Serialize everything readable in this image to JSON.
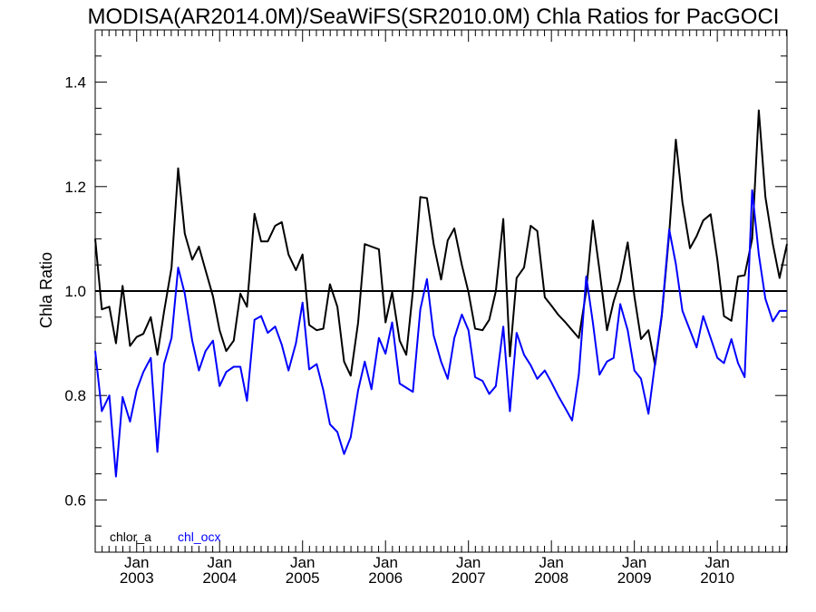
{
  "chart_data": {
    "type": "line",
    "title": "MODISA(AR2014.0M)/SeaWiFS(SR2010.0M)  Chla Ratios for PacGOCI",
    "ylabel": "Chla Ratio",
    "xlabel": "",
    "ylim": [
      0.5,
      1.5
    ],
    "yticks": [
      0.6,
      0.8,
      1.0,
      1.2,
      1.4
    ],
    "ytick_labels": [
      "0.6",
      "0.8",
      "1.0",
      "1.2",
      "1.4"
    ],
    "xlim": [
      2002.5,
      2010.84
    ],
    "xticks": [
      {
        "x": 2003.0,
        "line1": "Jan",
        "line2": "2003"
      },
      {
        "x": 2004.0,
        "line1": "Jan",
        "line2": "2004"
      },
      {
        "x": 2005.0,
        "line1": "Jan",
        "line2": "2005"
      },
      {
        "x": 2006.0,
        "line1": "Jan",
        "line2": "2006"
      },
      {
        "x": 2007.0,
        "line1": "Jan",
        "line2": "2007"
      },
      {
        "x": 2008.0,
        "line1": "Jan",
        "line2": "2008"
      },
      {
        "x": 2009.0,
        "line1": "Jan",
        "line2": "2009"
      },
      {
        "x": 2010.0,
        "line1": "Jan",
        "line2": "2010"
      }
    ],
    "reference_line": 1.0,
    "legend_position": "bottom-left",
    "series": [
      {
        "name": "chlor_a",
        "color": "#000000",
        "points": [
          [
            2002.5,
            1.1
          ],
          [
            2002.58,
            0.965
          ],
          [
            2002.67,
            0.97
          ],
          [
            2002.75,
            0.9
          ],
          [
            2002.83,
            1.01
          ],
          [
            2002.92,
            0.895
          ],
          [
            2003.0,
            0.912
          ],
          [
            2003.08,
            0.918
          ],
          [
            2003.17,
            0.95
          ],
          [
            2003.25,
            0.878
          ],
          [
            2003.33,
            0.96
          ],
          [
            2003.42,
            1.045
          ],
          [
            2003.5,
            1.235
          ],
          [
            2003.58,
            1.11
          ],
          [
            2003.67,
            1.06
          ],
          [
            2003.75,
            1.085
          ],
          [
            2003.83,
            1.04
          ],
          [
            2003.92,
            0.99
          ],
          [
            2004.0,
            0.925
          ],
          [
            2004.08,
            0.885
          ],
          [
            2004.17,
            0.905
          ],
          [
            2004.25,
            0.995
          ],
          [
            2004.33,
            0.97
          ],
          [
            2004.42,
            1.148
          ],
          [
            2004.5,
            1.095
          ],
          [
            2004.58,
            1.095
          ],
          [
            2004.67,
            1.125
          ],
          [
            2004.75,
            1.132
          ],
          [
            2004.83,
            1.07
          ],
          [
            2004.92,
            1.04
          ],
          [
            2005.0,
            1.07
          ],
          [
            2005.08,
            0.935
          ],
          [
            2005.17,
            0.925
          ],
          [
            2005.25,
            0.928
          ],
          [
            2005.33,
            1.013
          ],
          [
            2005.42,
            0.97
          ],
          [
            2005.5,
            0.865
          ],
          [
            2005.58,
            0.838
          ],
          [
            2005.67,
            0.94
          ],
          [
            2005.75,
            1.09
          ],
          [
            2005.83,
            1.085
          ],
          [
            2005.92,
            1.08
          ],
          [
            2006.0,
            0.94
          ],
          [
            2006.08,
            0.998
          ],
          [
            2006.17,
            0.905
          ],
          [
            2006.25,
            0.878
          ],
          [
            2006.33,
            1.0
          ],
          [
            2006.42,
            1.18
          ],
          [
            2006.5,
            1.178
          ],
          [
            2006.58,
            1.09
          ],
          [
            2006.67,
            1.022
          ],
          [
            2006.75,
            1.097
          ],
          [
            2006.83,
            1.12
          ],
          [
            2006.92,
            1.05
          ],
          [
            2007.0,
            0.998
          ],
          [
            2007.08,
            0.928
          ],
          [
            2007.17,
            0.925
          ],
          [
            2007.25,
            0.945
          ],
          [
            2007.33,
            1.0
          ],
          [
            2007.42,
            1.138
          ],
          [
            2007.5,
            0.875
          ],
          [
            2007.58,
            1.025
          ],
          [
            2007.67,
            1.045
          ],
          [
            2007.75,
            1.125
          ],
          [
            2007.83,
            1.115
          ],
          [
            2007.92,
            0.988
          ],
          [
            2008.0,
            0.972
          ],
          [
            2008.08,
            0.955
          ],
          [
            2008.17,
            0.94
          ],
          [
            2008.25,
            0.925
          ],
          [
            2008.33,
            0.91
          ],
          [
            2008.42,
            1.0
          ],
          [
            2008.5,
            1.135
          ],
          [
            2008.58,
            1.04
          ],
          [
            2008.67,
            0.925
          ],
          [
            2008.75,
            0.98
          ],
          [
            2008.83,
            1.02
          ],
          [
            2008.92,
            1.093
          ],
          [
            2009.0,
            0.99
          ],
          [
            2009.08,
            0.908
          ],
          [
            2009.17,
            0.925
          ],
          [
            2009.25,
            0.858
          ],
          [
            2009.33,
            0.952
          ],
          [
            2009.42,
            1.11
          ],
          [
            2009.5,
            1.29
          ],
          [
            2009.58,
            1.17
          ],
          [
            2009.67,
            1.082
          ],
          [
            2009.75,
            1.105
          ],
          [
            2009.83,
            1.135
          ],
          [
            2009.92,
            1.147
          ],
          [
            2010.0,
            1.06
          ],
          [
            2010.08,
            0.952
          ],
          [
            2010.17,
            0.943
          ],
          [
            2010.25,
            1.028
          ],
          [
            2010.33,
            1.03
          ],
          [
            2010.42,
            1.1
          ],
          [
            2010.5,
            1.346
          ],
          [
            2010.58,
            1.18
          ],
          [
            2010.67,
            1.09
          ],
          [
            2010.75,
            1.025
          ],
          [
            2010.84,
            1.09
          ]
        ]
      },
      {
        "name": "chl_ocx",
        "color": "#0000ff",
        "points": [
          [
            2002.5,
            0.885
          ],
          [
            2002.58,
            0.77
          ],
          [
            2002.67,
            0.8
          ],
          [
            2002.75,
            0.645
          ],
          [
            2002.83,
            0.797
          ],
          [
            2002.92,
            0.75
          ],
          [
            2003.0,
            0.81
          ],
          [
            2003.08,
            0.845
          ],
          [
            2003.17,
            0.872
          ],
          [
            2003.25,
            0.692
          ],
          [
            2003.33,
            0.86
          ],
          [
            2003.42,
            0.91
          ],
          [
            2003.5,
            1.045
          ],
          [
            2003.58,
            0.995
          ],
          [
            2003.67,
            0.905
          ],
          [
            2003.75,
            0.848
          ],
          [
            2003.83,
            0.885
          ],
          [
            2003.92,
            0.905
          ],
          [
            2004.0,
            0.818
          ],
          [
            2004.08,
            0.845
          ],
          [
            2004.17,
            0.855
          ],
          [
            2004.25,
            0.855
          ],
          [
            2004.33,
            0.79
          ],
          [
            2004.42,
            0.945
          ],
          [
            2004.5,
            0.952
          ],
          [
            2004.58,
            0.92
          ],
          [
            2004.67,
            0.932
          ],
          [
            2004.75,
            0.897
          ],
          [
            2004.83,
            0.848
          ],
          [
            2004.92,
            0.9
          ],
          [
            2005.0,
            0.978
          ],
          [
            2005.08,
            0.85
          ],
          [
            2005.17,
            0.86
          ],
          [
            2005.25,
            0.81
          ],
          [
            2005.33,
            0.745
          ],
          [
            2005.42,
            0.73
          ],
          [
            2005.5,
            0.688
          ],
          [
            2005.58,
            0.72
          ],
          [
            2005.67,
            0.81
          ],
          [
            2005.75,
            0.865
          ],
          [
            2005.83,
            0.812
          ],
          [
            2005.92,
            0.91
          ],
          [
            2006.0,
            0.88
          ],
          [
            2006.08,
            0.94
          ],
          [
            2006.17,
            0.823
          ],
          [
            2006.25,
            0.815
          ],
          [
            2006.33,
            0.807
          ],
          [
            2006.42,
            0.965
          ],
          [
            2006.5,
            1.023
          ],
          [
            2006.58,
            0.915
          ],
          [
            2006.67,
            0.865
          ],
          [
            2006.75,
            0.832
          ],
          [
            2006.83,
            0.91
          ],
          [
            2006.92,
            0.955
          ],
          [
            2007.0,
            0.925
          ],
          [
            2007.08,
            0.835
          ],
          [
            2007.17,
            0.828
          ],
          [
            2007.25,
            0.803
          ],
          [
            2007.33,
            0.818
          ],
          [
            2007.42,
            0.932
          ],
          [
            2007.5,
            0.77
          ],
          [
            2007.58,
            0.92
          ],
          [
            2007.67,
            0.878
          ],
          [
            2007.75,
            0.858
          ],
          [
            2007.83,
            0.832
          ],
          [
            2007.92,
            0.848
          ],
          [
            2008.0,
            0.825
          ],
          [
            2008.08,
            0.8
          ],
          [
            2008.17,
            0.775
          ],
          [
            2008.25,
            0.752
          ],
          [
            2008.33,
            0.84
          ],
          [
            2008.42,
            1.028
          ],
          [
            2008.5,
            0.94
          ],
          [
            2008.58,
            0.84
          ],
          [
            2008.67,
            0.865
          ],
          [
            2008.75,
            0.872
          ],
          [
            2008.83,
            0.975
          ],
          [
            2008.92,
            0.925
          ],
          [
            2009.0,
            0.848
          ],
          [
            2009.08,
            0.832
          ],
          [
            2009.17,
            0.765
          ],
          [
            2009.25,
            0.862
          ],
          [
            2009.33,
            0.955
          ],
          [
            2009.42,
            1.118
          ],
          [
            2009.5,
            1.052
          ],
          [
            2009.58,
            0.962
          ],
          [
            2009.67,
            0.925
          ],
          [
            2009.75,
            0.892
          ],
          [
            2009.83,
            0.952
          ],
          [
            2009.92,
            0.91
          ],
          [
            2010.0,
            0.872
          ],
          [
            2010.08,
            0.862
          ],
          [
            2010.17,
            0.908
          ],
          [
            2010.25,
            0.862
          ],
          [
            2010.33,
            0.835
          ],
          [
            2010.42,
            1.193
          ],
          [
            2010.5,
            1.07
          ],
          [
            2010.58,
            0.985
          ],
          [
            2010.67,
            0.942
          ],
          [
            2010.75,
            0.962
          ],
          [
            2010.84,
            0.962
          ]
        ]
      }
    ]
  }
}
